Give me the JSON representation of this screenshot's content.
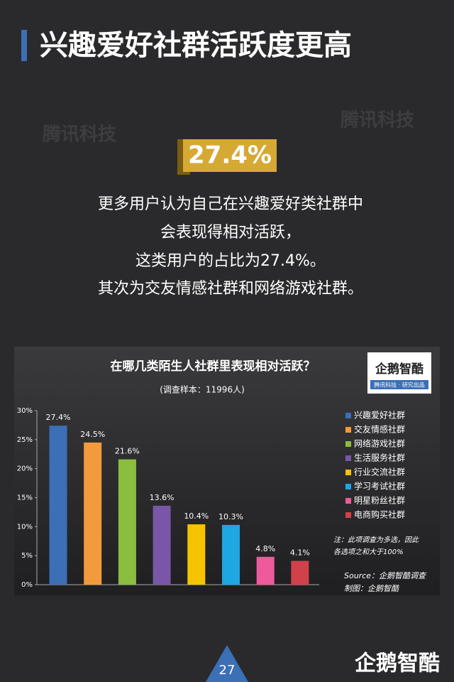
{
  "header": {
    "title": "兴趣爱好社群活跃度更高"
  },
  "watermark": "腾讯科技",
  "highlight": "27.4%",
  "paragraph": [
    "更多用户认为自己在兴趣爱好类社群中",
    "会表现得相对活跃，",
    "这类用户的占比为27.4%。",
    "其次为交友情感社群和网络游戏社群。"
  ],
  "chart_data": {
    "type": "bar",
    "title": "在哪几类陌生人社群里表现相对活跃？",
    "subtitle": "(调查样本：11996人)",
    "categories": [
      "兴趣爱好社群",
      "交友情感社群",
      "网络游戏社群",
      "生活服务社群",
      "行业交流社群",
      "学习考试社群",
      "明星粉丝社群",
      "电商购买社群"
    ],
    "values": [
      27.4,
      24.5,
      21.6,
      13.6,
      10.4,
      10.3,
      4.8,
      4.1
    ],
    "value_labels": [
      "27.4%",
      "24.5%",
      "21.6%",
      "13.6%",
      "10.4%",
      "10.3%",
      "4.8%",
      "4.1%"
    ],
    "colors": [
      "#3b6fb6",
      "#f39a3c",
      "#8bbd3f",
      "#7a56a8",
      "#f5c400",
      "#1ea7e1",
      "#ee5a9b",
      "#d0414a"
    ],
    "ylim": [
      0,
      30
    ],
    "yticks": [
      {
        "value": 0,
        "label": "0%"
      },
      {
        "value": 5,
        "label": "5%"
      },
      {
        "value": 10,
        "label": "10%"
      },
      {
        "value": 15,
        "label": "15%"
      },
      {
        "value": 20,
        "label": "20%"
      },
      {
        "value": 25,
        "label": "25%"
      },
      {
        "value": 30,
        "label": "30%"
      }
    ],
    "grid": false,
    "legend": "right",
    "note": [
      "注：此项调查为多选，因此",
      "各选项之和大于100%"
    ],
    "source": [
      "Source：企鹅智酷调查",
      "制图：企鹅智酷"
    ]
  },
  "logo": {
    "name": "企鹅智酷",
    "tagline": "腾讯科技 · 研究出品"
  },
  "footer": {
    "page": "27",
    "brand": "企鹅智酷"
  }
}
